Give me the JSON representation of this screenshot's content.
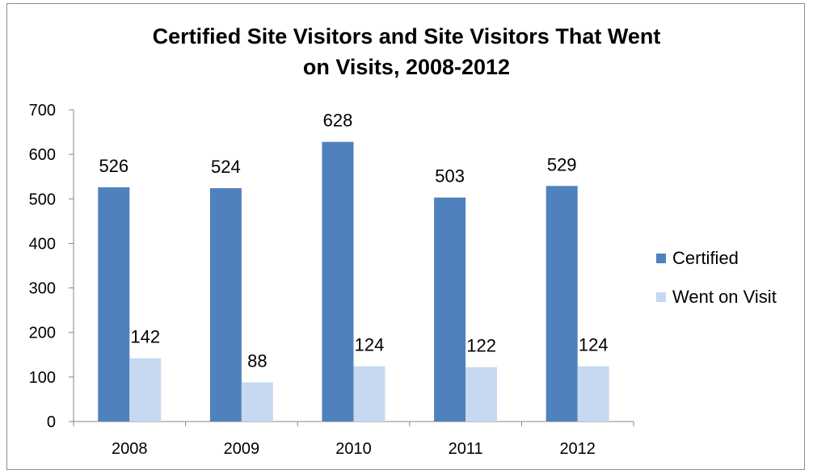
{
  "chart_data": {
    "type": "bar",
    "title_lines": [
      "Certified Site Visitors and Site Visitors That Went",
      "on Visits, 2008-2012"
    ],
    "categories": [
      "2008",
      "2009",
      "2010",
      "2011",
      "2012"
    ],
    "series": [
      {
        "name": "Certified",
        "values": [
          526,
          524,
          628,
          503,
          529
        ],
        "color": "#4f81bd"
      },
      {
        "name": "Went on Visit",
        "values": [
          142,
          88,
          124,
          122,
          124
        ],
        "color": "#c6d9f1"
      }
    ],
    "ylim": [
      0,
      700
    ],
    "yticks": [
      0,
      100,
      200,
      300,
      400,
      500,
      600,
      700
    ],
    "grid": false,
    "legend": "right"
  }
}
